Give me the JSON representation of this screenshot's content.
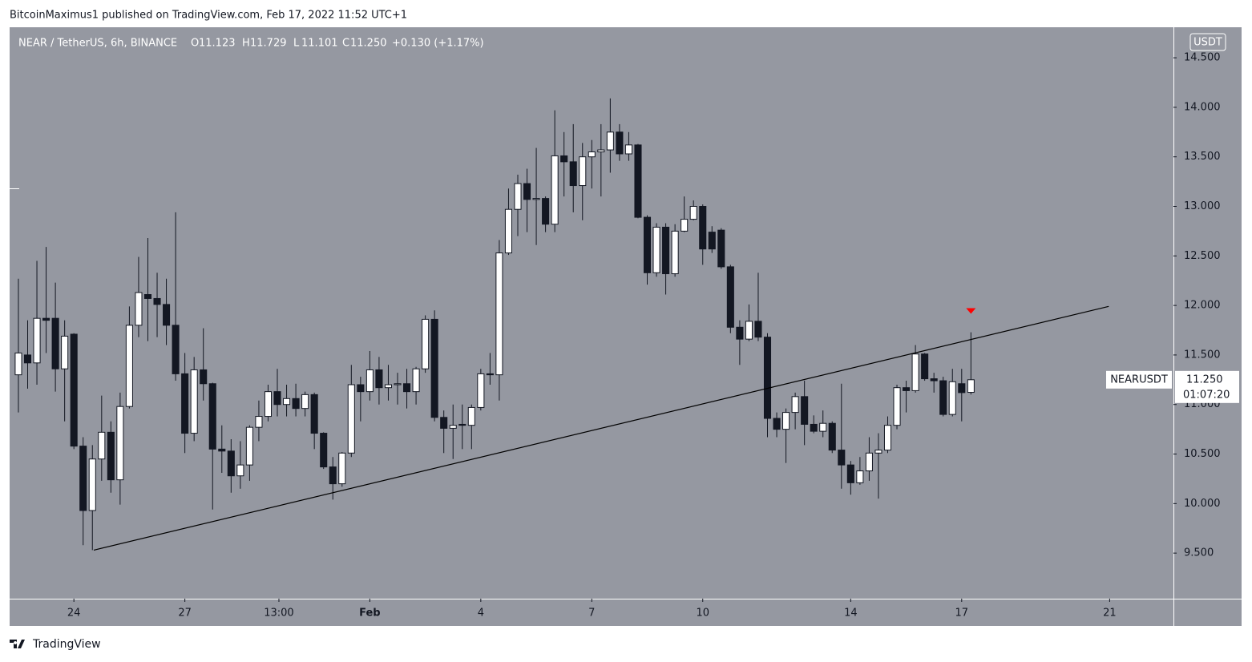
{
  "header": {
    "publisher": "BitcoinMaximus1 published on TradingView.com, Feb 17, 2022 11:52 UTC+1",
    "brand": "TradingView"
  },
  "chart_data": {
    "type": "candlestick",
    "title": "NEAR / TetherUS, 6h, BINANCE",
    "ohlc": [
      {
        "key": "O",
        "value": "11.123"
      },
      {
        "key": "H",
        "value": "11.729"
      },
      {
        "key": "L",
        "value": "11.101"
      },
      {
        "key": "C",
        "value": "11.250"
      }
    ],
    "change": "+0.130 (+1.17%)",
    "currency": "USDT",
    "last_price": {
      "symbol": "NEARUSDT",
      "price": "11.250",
      "countdown": "01:07:20"
    },
    "open": [
      11.3,
      11.5,
      11.42,
      11.87,
      11.87,
      11.36,
      11.71,
      10.58,
      9.93,
      10.45,
      10.72,
      10.24,
      10.98,
      11.8,
      12.11,
      12.07,
      12.01,
      11.8,
      11.31,
      10.71,
      11.35,
      11.21,
      10.55,
      10.53,
      10.28,
      10.39,
      10.77,
      10.88,
      11.13,
      11.0,
      11.06,
      10.96,
      11.1,
      10.71,
      10.37,
      10.2,
      10.51,
      11.2,
      11.13,
      11.35,
      11.17,
      11.2,
      11.21,
      11.13,
      11.36,
      11.86,
      10.87,
      10.76,
      10.8,
      10.79,
      10.97,
      11.31,
      11.3,
      12.53,
      12.97,
      13.23,
      13.07,
      13.08,
      12.82,
      13.51,
      13.45,
      13.21,
      13.5,
      13.55,
      13.57,
      13.75,
      13.53,
      13.62,
      12.89,
      12.33,
      12.79,
      12.32,
      12.75,
      12.87,
      13.0,
      12.74,
      12.76,
      12.39,
      11.78,
      11.66,
      11.84,
      11.68,
      10.86,
      10.75,
      10.92,
      11.08,
      10.8,
      10.73,
      10.81,
      10.54,
      10.39,
      10.21,
      10.33,
      10.51,
      10.54,
      10.79,
      11.17,
      11.14,
      11.51,
      11.26,
      11.24,
      10.9,
      11.21,
      11.123
    ],
    "high": [
      12.27,
      11.85,
      12.45,
      12.59,
      12.23,
      11.85,
      11.72,
      10.67,
      10.59,
      11.09,
      10.83,
      11.12,
      11.99,
      12.49,
      12.68,
      12.33,
      12.27,
      12.94,
      11.52,
      11.48,
      11.77,
      11.22,
      10.79,
      10.65,
      10.63,
      10.79,
      11.04,
      11.2,
      11.36,
      11.2,
      11.21,
      11.13,
      11.12,
      10.72,
      10.47,
      10.52,
      11.4,
      11.28,
      11.54,
      11.48,
      11.4,
      11.32,
      11.36,
      11.38,
      11.9,
      11.95,
      10.94,
      11.0,
      11.0,
      11.0,
      11.36,
      11.52,
      12.66,
      13.18,
      13.32,
      13.38,
      13.59,
      13.1,
      13.97,
      13.75,
      13.83,
      13.64,
      13.67,
      13.83,
      14.09,
      13.83,
      13.75,
      13.63,
      12.91,
      12.83,
      12.83,
      12.82,
      13.1,
      13.06,
      13.02,
      12.8,
      12.78,
      12.41,
      11.85,
      12.01,
      12.33,
      11.72,
      10.92,
      10.96,
      11.12,
      11.24,
      10.89,
      10.94,
      10.83,
      11.21,
      10.43,
      10.47,
      10.67,
      10.71,
      10.88,
      11.2,
      11.24,
      11.6,
      11.52,
      11.32,
      11.28,
      11.36,
      11.36,
      11.729
    ],
    "low": [
      10.92,
      11.16,
      11.2,
      11.52,
      11.13,
      10.83,
      10.55,
      9.58,
      9.53,
      10.23,
      10.11,
      9.99,
      10.96,
      11.68,
      11.64,
      11.68,
      11.6,
      11.24,
      10.51,
      10.63,
      11.04,
      9.94,
      10.31,
      10.11,
      10.15,
      10.23,
      10.63,
      10.83,
      10.88,
      10.88,
      10.88,
      10.88,
      10.55,
      10.35,
      10.04,
      10.17,
      10.47,
      10.83,
      11.04,
      11.0,
      11.04,
      11.0,
      10.96,
      11.0,
      11.32,
      10.83,
      10.51,
      10.45,
      10.55,
      10.55,
      10.94,
      11.2,
      11.04,
      12.51,
      12.7,
      12.74,
      12.61,
      12.74,
      12.74,
      13.1,
      12.94,
      12.86,
      13.18,
      13.1,
      13.34,
      13.46,
      13.46,
      12.88,
      12.21,
      12.29,
      12.11,
      12.29,
      12.74,
      12.86,
      12.41,
      12.53,
      12.37,
      11.72,
      11.4,
      11.64,
      11.64,
      10.67,
      10.67,
      10.41,
      10.75,
      10.59,
      10.71,
      10.67,
      10.51,
      10.15,
      10.09,
      10.19,
      10.23,
      10.05,
      10.51,
      10.75,
      10.92,
      11.12,
      11.24,
      11.12,
      10.88,
      10.88,
      10.83,
      11.101
    ],
    "close": [
      11.52,
      11.42,
      11.87,
      11.85,
      11.36,
      11.69,
      10.58,
      9.93,
      10.45,
      10.72,
      10.24,
      10.98,
      11.8,
      12.13,
      12.07,
      12.01,
      11.8,
      11.31,
      10.71,
      11.35,
      11.21,
      10.55,
      10.53,
      10.28,
      10.39,
      10.77,
      10.88,
      11.13,
      11.0,
      11.06,
      10.96,
      11.1,
      10.71,
      10.37,
      10.2,
      10.51,
      11.2,
      11.13,
      11.35,
      11.17,
      11.2,
      11.21,
      11.13,
      11.36,
      11.86,
      10.87,
      10.76,
      10.79,
      10.79,
      10.97,
      11.31,
      11.3,
      12.53,
      12.97,
      13.23,
      13.07,
      13.08,
      12.82,
      13.51,
      13.45,
      13.21,
      13.5,
      13.55,
      13.57,
      13.75,
      13.53,
      13.62,
      12.89,
      12.33,
      12.79,
      12.32,
      12.75,
      12.87,
      13.0,
      12.57,
      12.57,
      12.39,
      11.78,
      11.66,
      11.84,
      11.68,
      10.86,
      10.75,
      10.92,
      11.08,
      10.8,
      10.73,
      10.81,
      10.54,
      10.39,
      10.21,
      10.33,
      10.51,
      10.54,
      10.79,
      11.17,
      11.14,
      11.51,
      11.26,
      11.24,
      10.9,
      11.23,
      11.12,
      11.25
    ],
    "up_color": "#ffffff",
    "down_color": "#131722",
    "background": "#9598a1",
    "xlim": [
      -0.95,
      124.9
    ],
    "xticks": [
      {
        "value": 6,
        "label": "24"
      },
      {
        "value": 18,
        "label": "27"
      },
      {
        "value": 28.17,
        "label": "13:00"
      },
      {
        "value": 38,
        "label": "Feb"
      },
      {
        "value": 50,
        "label": "4"
      },
      {
        "value": 62,
        "label": "7"
      },
      {
        "value": 74,
        "label": "10"
      },
      {
        "value": 90,
        "label": "14"
      },
      {
        "value": 102,
        "label": "17"
      },
      {
        "value": 118,
        "label": "21"
      }
    ],
    "ylim": [
      9.04,
      14.8
    ],
    "yticks": [
      {
        "value": 9.5,
        "label": "9.500"
      },
      {
        "value": 10,
        "label": "10.000"
      },
      {
        "value": 10.5,
        "label": "10.500"
      },
      {
        "value": 11,
        "label": "11.000"
      },
      {
        "value": 11.5,
        "label": "11.500"
      },
      {
        "value": 12,
        "label": "12.000"
      },
      {
        "value": 12.5,
        "label": "12.500"
      },
      {
        "value": 13,
        "label": "13.000"
      },
      {
        "value": 13.5,
        "label": "13.500"
      },
      {
        "value": 14,
        "label": "14.000"
      },
      {
        "value": 14.5,
        "label": "14.500"
      }
    ],
    "trendline": {
      "x": [
        8.15,
        117.9
      ],
      "y": [
        9.53,
        11.99
      ],
      "color": "#000000"
    },
    "marker": {
      "x": 103,
      "y": 11.94,
      "color": "#ff0000"
    }
  }
}
